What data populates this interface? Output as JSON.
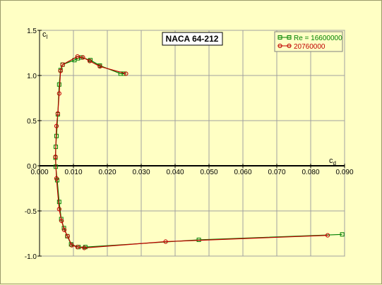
{
  "chart_data": {
    "type": "line",
    "title": "NACA 64-212",
    "xlabel_main": "c",
    "xlabel_sub": "d",
    "ylabel_main": "c",
    "ylabel_sub": "l",
    "xlim": [
      0.0,
      0.09
    ],
    "ylim": [
      -1.0,
      1.5
    ],
    "xticks": [
      "0.000",
      "0.010",
      "0.020",
      "0.030",
      "0.040",
      "0.050",
      "0.060",
      "0.070",
      "0.080",
      "0.090"
    ],
    "yticks": [
      "1.5",
      "1.0",
      "0.5",
      "0.0",
      "-0.5",
      "-1.0"
    ],
    "grid": true,
    "legend_position": "top-right",
    "series": [
      {
        "name": "Re = 16600000",
        "color": "#008000",
        "marker": "square",
        "x": [
          0.0249,
          0.0239,
          0.0178,
          0.015,
          0.0123,
          0.0113,
          0.0103,
          0.0068,
          0.0062,
          0.0058,
          0.0054,
          0.005,
          0.0048,
          0.0047,
          0.0048,
          0.0052,
          0.0058,
          0.0064,
          0.0072,
          0.0082,
          0.0093,
          0.0115,
          0.0135,
          0.047,
          0.0893
        ],
        "y": [
          1.02,
          1.02,
          1.11,
          1.17,
          1.2,
          1.19,
          1.17,
          1.12,
          1.06,
          0.9,
          0.57,
          0.33,
          0.21,
          0.09,
          -0.01,
          -0.16,
          -0.4,
          -0.59,
          -0.69,
          -0.78,
          -0.87,
          -0.9,
          -0.9,
          -0.82,
          -0.76
        ]
      },
      {
        "name": "20760000",
        "color": "#c00000",
        "marker": "circle",
        "x": [
          0.0255,
          0.0178,
          0.0148,
          0.0128,
          0.0112,
          0.0068,
          0.0062,
          0.0058,
          0.0054,
          0.005,
          0.0047,
          0.005,
          0.0058,
          0.0065,
          0.0073,
          0.0083,
          0.0095,
          0.0112,
          0.0132,
          0.0372,
          0.085
        ],
        "y": [
          1.02,
          1.1,
          1.16,
          1.2,
          1.21,
          1.12,
          1.05,
          0.8,
          0.58,
          0.44,
          0.1,
          -0.14,
          -0.48,
          -0.61,
          -0.71,
          -0.78,
          -0.88,
          -0.9,
          -0.91,
          -0.84,
          -0.77
        ]
      }
    ]
  }
}
